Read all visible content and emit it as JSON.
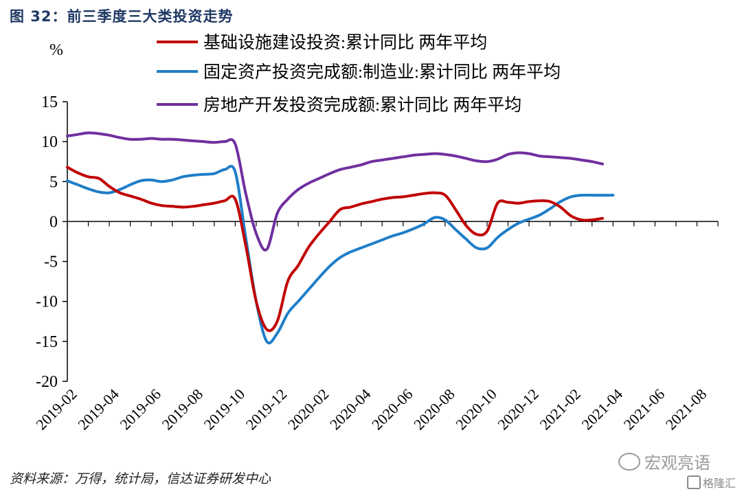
{
  "figure_title": "图 32：前三季度三大类投资走势",
  "source_note": "资料来源：万得，统计局，信达证券研发中心",
  "watermark_text": "宏观亮语",
  "brand_text": "格隆汇",
  "chart_data": {
    "type": "line",
    "title": "前三季度三大类投资走势",
    "xlabel": "",
    "ylabel": "%",
    "ylim": [
      -20,
      15
    ],
    "yticks": [
      15,
      10,
      5,
      0,
      -5,
      -10,
      -15,
      -20
    ],
    "x_start": "2019-02",
    "tick_labels": [
      "2019-02",
      "2019-04",
      "2019-06",
      "2019-08",
      "2019-10",
      "2019-12",
      "2020-02",
      "2020-04",
      "2020-06",
      "2020-08",
      "2020-10",
      "2020-12",
      "2021-02",
      "2021-04",
      "2021-06",
      "2021-08"
    ],
    "grid": false,
    "legend_position": "top",
    "series": [
      {
        "name": "基础设施建设投资:累计同比 两年平均",
        "color": "#c00000",
        "points": [
          [
            0,
            6.8
          ],
          [
            0.5,
            6.1
          ],
          [
            1,
            5.6
          ],
          [
            1.5,
            5.4
          ],
          [
            2,
            4.4
          ],
          [
            2.5,
            3.6
          ],
          [
            3,
            3.2
          ],
          [
            3.5,
            2.8
          ],
          [
            4,
            2.3
          ],
          [
            4.5,
            2.0
          ],
          [
            5,
            1.9
          ],
          [
            5.5,
            1.8
          ],
          [
            6,
            1.9
          ],
          [
            6.5,
            2.1
          ],
          [
            7,
            2.3
          ],
          [
            7.5,
            2.6
          ],
          [
            8,
            2.8
          ],
          [
            8.5,
            -3.0
          ],
          [
            9,
            -10.0
          ],
          [
            9.5,
            -13.5
          ],
          [
            10,
            -12.5
          ],
          [
            10.5,
            -7.5
          ],
          [
            11,
            -5.5
          ],
          [
            11.5,
            -3.2
          ],
          [
            12,
            -1.5
          ],
          [
            12.5,
            0.0
          ],
          [
            13,
            1.5
          ],
          [
            13.5,
            1.8
          ],
          [
            14,
            2.2
          ],
          [
            14.5,
            2.5
          ],
          [
            15,
            2.8
          ],
          [
            15.5,
            3.0
          ],
          [
            16,
            3.1
          ],
          [
            16.5,
            3.3
          ],
          [
            17,
            3.5
          ],
          [
            17.5,
            3.6
          ],
          [
            18,
            3.3
          ],
          [
            18.5,
            1.5
          ],
          [
            19,
            -0.5
          ],
          [
            19.5,
            -1.6
          ],
          [
            20,
            -1.2
          ],
          [
            20.5,
            2.3
          ],
          [
            21,
            2.4
          ],
          [
            21.5,
            2.3
          ],
          [
            22,
            2.5
          ],
          [
            22.5,
            2.6
          ],
          [
            23,
            2.5
          ],
          [
            23.5,
            1.8
          ],
          [
            24,
            0.7
          ],
          [
            24.5,
            0.2
          ],
          [
            25,
            0.2
          ],
          [
            25.5,
            0.4
          ]
        ]
      },
      {
        "name": "固定资产投资完成额:制造业:累计同比 两年平均",
        "color": "#1f7ec8",
        "points": [
          [
            0,
            5.1
          ],
          [
            0.5,
            4.6
          ],
          [
            1,
            4.1
          ],
          [
            1.5,
            3.7
          ],
          [
            2,
            3.6
          ],
          [
            2.5,
            4.0
          ],
          [
            3,
            4.6
          ],
          [
            3.5,
            5.1
          ],
          [
            4,
            5.2
          ],
          [
            4.5,
            5.0
          ],
          [
            5,
            5.2
          ],
          [
            5.5,
            5.6
          ],
          [
            6,
            5.8
          ],
          [
            6.5,
            5.9
          ],
          [
            7,
            6.0
          ],
          [
            7.5,
            6.5
          ],
          [
            8,
            6.2
          ],
          [
            8.5,
            -2.0
          ],
          [
            9,
            -10.0
          ],
          [
            9.5,
            -15.0
          ],
          [
            10,
            -14.0
          ],
          [
            10.5,
            -11.5
          ],
          [
            11,
            -10.0
          ],
          [
            11.5,
            -8.5
          ],
          [
            12,
            -7.0
          ],
          [
            12.5,
            -5.6
          ],
          [
            13,
            -4.5
          ],
          [
            13.5,
            -3.8
          ],
          [
            14,
            -3.3
          ],
          [
            14.5,
            -2.8
          ],
          [
            15,
            -2.3
          ],
          [
            15.5,
            -1.8
          ],
          [
            16,
            -1.4
          ],
          [
            16.5,
            -0.9
          ],
          [
            17,
            -0.3
          ],
          [
            17.5,
            0.5
          ],
          [
            18,
            0.2
          ],
          [
            18.5,
            -1.0
          ],
          [
            19,
            -2.2
          ],
          [
            19.5,
            -3.3
          ],
          [
            20,
            -3.3
          ],
          [
            20.5,
            -2.0
          ],
          [
            21,
            -1.0
          ],
          [
            21.5,
            -0.2
          ],
          [
            22,
            0.3
          ],
          [
            22.5,
            0.8
          ],
          [
            23,
            1.6
          ],
          [
            23.5,
            2.5
          ],
          [
            24,
            3.1
          ],
          [
            24.5,
            3.3
          ],
          [
            25,
            3.3
          ],
          [
            25.5,
            3.3
          ],
          [
            26,
            3.3
          ]
        ]
      },
      {
        "name": "房地产开发投资完成额:累计同比 两年平均",
        "color": "#7030a0",
        "points": [
          [
            0,
            10.7
          ],
          [
            0.5,
            10.9
          ],
          [
            1,
            11.1
          ],
          [
            1.5,
            11.0
          ],
          [
            2,
            10.8
          ],
          [
            2.5,
            10.5
          ],
          [
            3,
            10.3
          ],
          [
            3.5,
            10.3
          ],
          [
            4,
            10.4
          ],
          [
            4.5,
            10.3
          ],
          [
            5,
            10.3
          ],
          [
            5.5,
            10.2
          ],
          [
            6,
            10.1
          ],
          [
            6.5,
            10.0
          ],
          [
            7,
            9.9
          ],
          [
            7.5,
            10.0
          ],
          [
            8,
            9.7
          ],
          [
            8.5,
            3.5
          ],
          [
            9,
            -1.5
          ],
          [
            9.5,
            -3.5
          ],
          [
            10,
            1.0
          ],
          [
            10.5,
            2.8
          ],
          [
            11,
            4.0
          ],
          [
            11.5,
            4.8
          ],
          [
            12,
            5.4
          ],
          [
            12.5,
            6.0
          ],
          [
            13,
            6.5
          ],
          [
            13.5,
            6.8
          ],
          [
            14,
            7.1
          ],
          [
            14.5,
            7.5
          ],
          [
            15,
            7.7
          ],
          [
            15.5,
            7.9
          ],
          [
            16,
            8.1
          ],
          [
            16.5,
            8.3
          ],
          [
            17,
            8.4
          ],
          [
            17.5,
            8.5
          ],
          [
            18,
            8.4
          ],
          [
            18.5,
            8.2
          ],
          [
            19,
            7.9
          ],
          [
            19.5,
            7.6
          ],
          [
            20,
            7.5
          ],
          [
            20.5,
            7.8
          ],
          [
            21,
            8.4
          ],
          [
            21.5,
            8.6
          ],
          [
            22,
            8.5
          ],
          [
            22.5,
            8.2
          ],
          [
            23,
            8.1
          ],
          [
            23.5,
            8.0
          ],
          [
            24,
            7.9
          ],
          [
            24.5,
            7.7
          ],
          [
            25,
            7.5
          ],
          [
            25.5,
            7.2
          ]
        ]
      }
    ]
  }
}
